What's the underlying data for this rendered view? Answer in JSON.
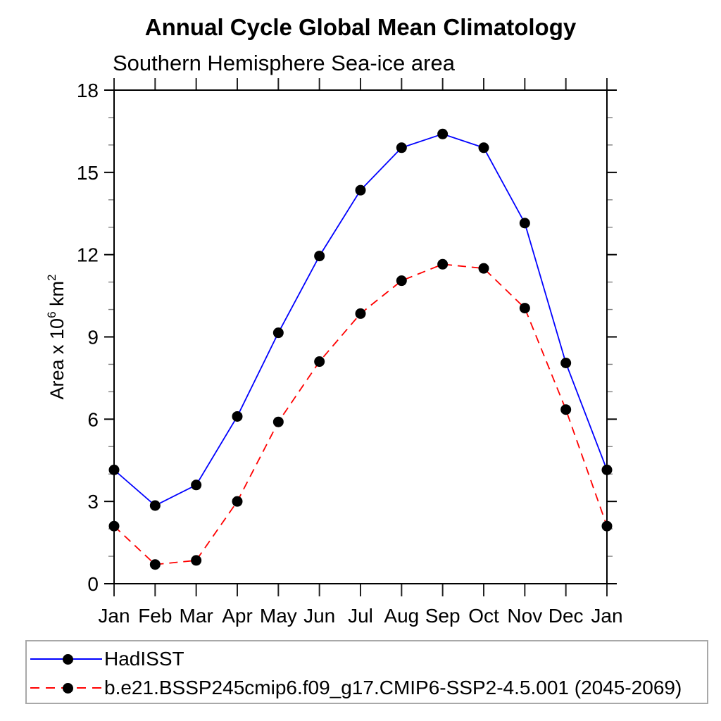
{
  "chart_data": {
    "type": "line",
    "title": "Annual Cycle Global Mean Climatology",
    "subtitle": "Southern Hemisphere Sea-ice area",
    "ylabel": {
      "prefix": "Area x 10",
      "sup1": "6",
      "mid": " km",
      "sup2": "2"
    },
    "categories": [
      "Jan",
      "Feb",
      "Mar",
      "Apr",
      "May",
      "Jun",
      "Jul",
      "Aug",
      "Sep",
      "Oct",
      "Nov",
      "Dec",
      "Jan"
    ],
    "ylim": [
      0,
      18
    ],
    "ytick_major": [
      0,
      3,
      6,
      9,
      12,
      15,
      18
    ],
    "ytick_minor_step": 1,
    "grid": false,
    "legend_position": "bottom-box",
    "marker": "filled-circle",
    "marker_color": "#000000",
    "series": [
      {
        "name": "HadISST",
        "color": "#0000ff",
        "style": "solid",
        "values": [
          4.15,
          2.85,
          3.6,
          6.1,
          9.15,
          11.95,
          14.35,
          15.9,
          16.4,
          15.9,
          13.15,
          8.05,
          4.15
        ]
      },
      {
        "name": "b.e21.BSSP245cmip6.f09_g17.CMIP6-SSP2-4.5.001 (2045-2069)",
        "color": "#ff0000",
        "style": "dashed",
        "values": [
          2.1,
          0.7,
          0.85,
          3.0,
          5.9,
          8.1,
          9.85,
          11.05,
          11.65,
          11.5,
          10.05,
          6.35,
          2.1
        ]
      }
    ]
  }
}
